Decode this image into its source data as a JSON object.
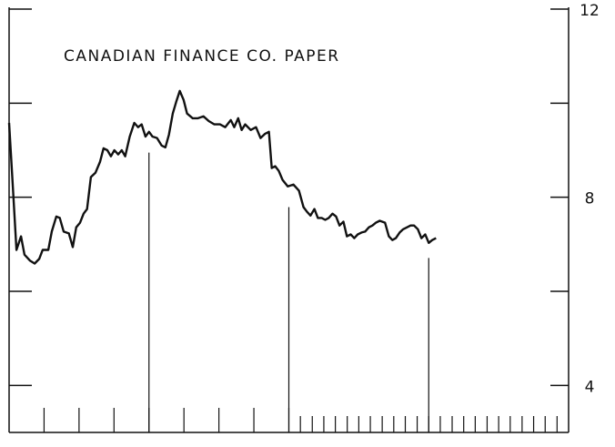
{
  "chart_data": {
    "type": "line",
    "title": "CANADIAN FINANCE CO. PAPER",
    "xlim": [
      0,
      16
    ],
    "ylim": [
      3,
      12
    ],
    "yticks": [
      4,
      8,
      12
    ],
    "minor_yticks": [
      6,
      10
    ],
    "xticks": [
      1,
      2,
      3,
      4,
      5,
      6,
      7,
      8
    ],
    "minor_xticks": [
      8.33,
      8.67,
      9,
      9.33,
      9.67,
      10,
      10.33,
      10.67,
      11,
      11.33,
      11.67,
      12,
      12.33,
      12.67,
      13,
      13.33,
      13.67,
      14,
      14.33,
      14.67,
      15,
      15.33,
      15.67
    ],
    "reference_lines": [
      {
        "x": 4,
        "y": 8.95
      },
      {
        "x": 8,
        "y": 7.79
      },
      {
        "x": 12,
        "y": 6.71
      }
    ],
    "color": "#111111",
    "x": [
      0,
      0.1,
      0.21,
      0.34,
      0.44,
      0.6,
      0.73,
      0.86,
      0.96,
      1.12,
      1.22,
      1.35,
      1.45,
      1.56,
      1.71,
      1.82,
      1.92,
      2.03,
      2.13,
      2.23,
      2.34,
      2.47,
      2.6,
      2.7,
      2.81,
      2.91,
      3.01,
      3.12,
      3.22,
      3.32,
      3.45,
      3.58,
      3.69,
      3.79,
      3.9,
      4.0,
      4.1,
      4.23,
      4.36,
      4.47,
      4.57,
      4.68,
      4.78,
      4.88,
      4.99,
      5.09,
      5.25,
      5.4,
      5.56,
      5.71,
      5.87,
      6.03,
      6.18,
      6.34,
      6.44,
      6.55,
      6.65,
      6.75,
      6.91,
      7.06,
      7.19,
      7.32,
      7.43,
      7.51,
      7.61,
      7.71,
      7.82,
      7.97,
      8.13,
      8.29,
      8.42,
      8.52,
      8.62,
      8.73,
      8.83,
      8.94,
      9.04,
      9.14,
      9.25,
      9.35,
      9.45,
      9.56,
      9.66,
      9.77,
      9.87,
      9.97,
      10.08,
      10.18,
      10.29,
      10.39,
      10.49,
      10.6,
      10.75,
      10.86,
      10.96,
      11.06,
      11.17,
      11.27,
      11.38,
      11.48,
      11.58,
      11.69,
      11.79,
      11.9,
      12.0,
      12.1,
      12.21
    ],
    "values": [
      9.58,
      8.33,
      6.88,
      7.17,
      6.78,
      6.65,
      6.59,
      6.69,
      6.88,
      6.88,
      7.27,
      7.59,
      7.56,
      7.27,
      7.23,
      6.94,
      7.36,
      7.46,
      7.65,
      7.75,
      8.43,
      8.52,
      8.75,
      9.04,
      9.0,
      8.87,
      9.0,
      8.91,
      9.0,
      8.87,
      9.29,
      9.58,
      9.49,
      9.55,
      9.29,
      9.39,
      9.29,
      9.26,
      9.1,
      9.06,
      9.33,
      9.78,
      10.03,
      10.26,
      10.07,
      9.78,
      9.68,
      9.68,
      9.72,
      9.62,
      9.55,
      9.55,
      9.49,
      9.64,
      9.49,
      9.68,
      9.43,
      9.55,
      9.43,
      9.49,
      9.26,
      9.35,
      9.39,
      8.62,
      8.66,
      8.56,
      8.37,
      8.23,
      8.27,
      8.14,
      7.79,
      7.69,
      7.61,
      7.75,
      7.56,
      7.56,
      7.52,
      7.56,
      7.65,
      7.59,
      7.4,
      7.48,
      7.17,
      7.21,
      7.13,
      7.21,
      7.25,
      7.27,
      7.36,
      7.4,
      7.46,
      7.5,
      7.46,
      7.17,
      7.09,
      7.13,
      7.25,
      7.32,
      7.36,
      7.4,
      7.4,
      7.32,
      7.13,
      7.21,
      7.03,
      7.09,
      7.13
    ]
  }
}
